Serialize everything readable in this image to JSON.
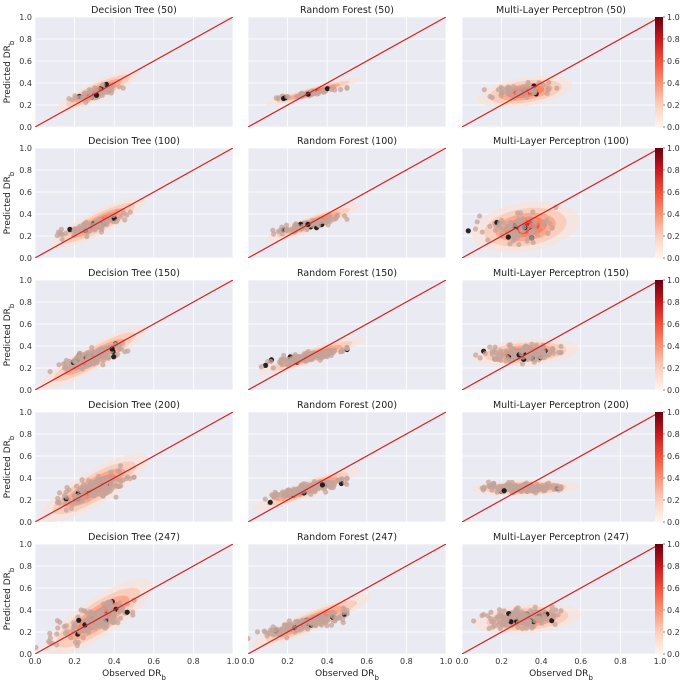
{
  "chart_data": {
    "type": "scatter",
    "layout": "5x3 grid of scatter panels with 2D density shading and a colorbar per row",
    "x_axis_label": "Observed DR",
    "x_axis_label_subscript": "b",
    "y_axis_label": "Predicted DR",
    "y_axis_label_subscript": "b",
    "xlim": [
      0.0,
      1.0
    ],
    "ylim": [
      0.0,
      1.0
    ],
    "axis_ticks": [
      "0.0",
      "0.2",
      "0.4",
      "0.6",
      "0.8",
      "1.0"
    ],
    "colorbar_ticks": [
      "0.0",
      "0.2",
      "0.4",
      "0.6",
      "0.8",
      "1.0"
    ],
    "colorbar_range": [
      0.0,
      1.0
    ],
    "colormap": "Reds",
    "reference_line": {
      "type": "identity",
      "color": "#d62020"
    },
    "background": "#eaeaf2",
    "point_color": "#c4a39a",
    "outlier_point_color": "#111111",
    "panels": [
      {
        "title": "Decision Tree (50)",
        "model": "Decision Tree",
        "n": 50,
        "center": [
          0.3,
          0.31
        ],
        "spread": [
          0.07,
          0.04
        ],
        "corr": 0.8,
        "density_center": [
          0.32,
          0.33
        ]
      },
      {
        "title": "Random Forest (50)",
        "model": "Random Forest",
        "n": 50,
        "center": [
          0.3,
          0.3
        ],
        "spread": [
          0.08,
          0.025
        ],
        "corr": 0.9,
        "density_center": [
          0.33,
          0.32
        ]
      },
      {
        "title": "Multi-Layer Perceptron (50)",
        "model": "Multi-Layer Perceptron",
        "n": 50,
        "center": [
          0.3,
          0.33
        ],
        "spread": [
          0.08,
          0.04
        ],
        "corr": 0.3,
        "density_center": [
          0.32,
          0.32
        ]
      },
      {
        "title": "Decision Tree (100)",
        "model": "Decision Tree",
        "n": 100,
        "center": [
          0.3,
          0.3
        ],
        "spread": [
          0.08,
          0.05
        ],
        "corr": 0.8,
        "density_center": [
          0.32,
          0.32
        ]
      },
      {
        "title": "Random Forest (100)",
        "model": "Random Forest",
        "n": 100,
        "center": [
          0.3,
          0.3
        ],
        "spread": [
          0.08,
          0.035
        ],
        "corr": 0.85,
        "density_center": [
          0.33,
          0.32
        ]
      },
      {
        "title": "Multi-Layer Perceptron (100)",
        "model": "Multi-Layer Perceptron",
        "n": 100,
        "center": [
          0.3,
          0.28
        ],
        "spread": [
          0.09,
          0.07
        ],
        "corr": 0.2,
        "density_center": [
          0.32,
          0.28
        ]
      },
      {
        "title": "Decision Tree (150)",
        "model": "Decision Tree",
        "n": 150,
        "center": [
          0.3,
          0.3
        ],
        "spread": [
          0.09,
          0.06
        ],
        "corr": 0.85,
        "density_center": [
          0.3,
          0.3
        ]
      },
      {
        "title": "Random Forest (150)",
        "model": "Random Forest",
        "n": 150,
        "center": [
          0.3,
          0.3
        ],
        "spread": [
          0.09,
          0.035
        ],
        "corr": 0.85,
        "density_center": [
          0.32,
          0.31
        ]
      },
      {
        "title": "Multi-Layer Perceptron (150)",
        "model": "Multi-Layer Perceptron",
        "n": 150,
        "center": [
          0.3,
          0.33
        ],
        "spread": [
          0.09,
          0.035
        ],
        "corr": 0.2,
        "density_center": [
          0.32,
          0.34
        ]
      },
      {
        "title": "Decision Tree (200)",
        "model": "Decision Tree",
        "n": 200,
        "center": [
          0.3,
          0.3
        ],
        "spread": [
          0.09,
          0.07
        ],
        "corr": 0.75,
        "density_center": [
          0.3,
          0.31
        ]
      },
      {
        "title": "Random Forest (200)",
        "model": "Random Forest",
        "n": 200,
        "center": [
          0.3,
          0.3
        ],
        "spread": [
          0.09,
          0.04
        ],
        "corr": 0.85,
        "density_center": [
          0.3,
          0.3
        ]
      },
      {
        "title": "Multi-Layer Perceptron (200)",
        "model": "Multi-Layer Perceptron",
        "n": 200,
        "center": [
          0.3,
          0.31
        ],
        "spread": [
          0.09,
          0.02
        ],
        "corr": 0.1,
        "density_center": [
          0.32,
          0.31
        ]
      },
      {
        "title": "Decision Tree (247)",
        "model": "Decision Tree",
        "n": 247,
        "center": [
          0.3,
          0.3
        ],
        "spread": [
          0.09,
          0.08
        ],
        "corr": 0.75,
        "density_center": [
          0.32,
          0.33
        ]
      },
      {
        "title": "Random Forest (247)",
        "model": "Random Forest",
        "n": 247,
        "center": [
          0.3,
          0.28
        ],
        "spread": [
          0.1,
          0.05
        ],
        "corr": 0.85,
        "density_center": [
          0.32,
          0.3
        ]
      },
      {
        "title": "Multi-Layer Perceptron (247)",
        "model": "Multi-Layer Perceptron",
        "n": 247,
        "center": [
          0.3,
          0.32
        ],
        "spread": [
          0.09,
          0.04
        ],
        "corr": 0.2,
        "density_center": [
          0.33,
          0.32
        ]
      }
    ]
  }
}
